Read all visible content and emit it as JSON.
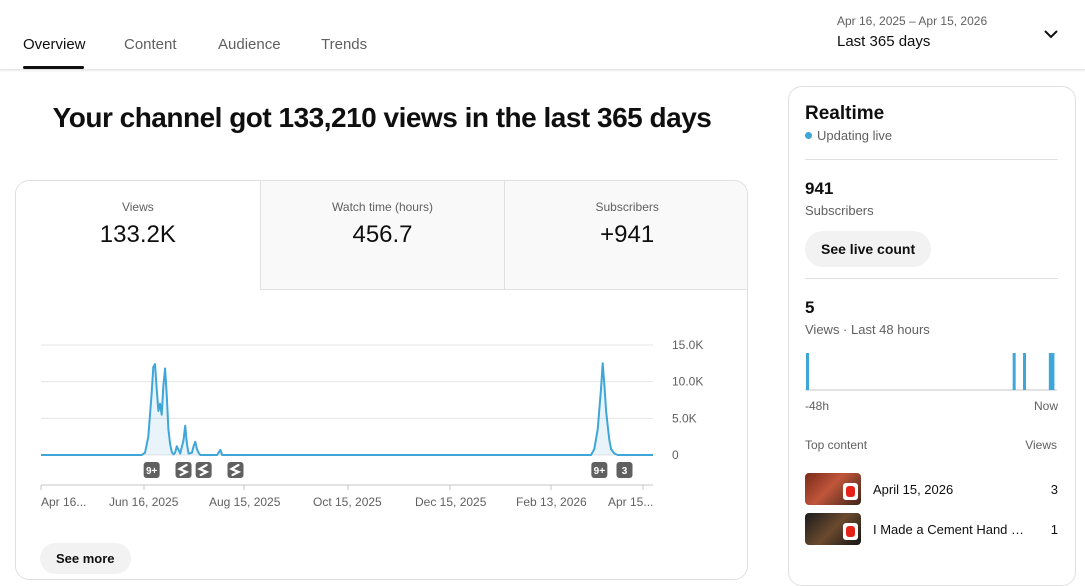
{
  "tabs": [
    {
      "label": "Overview"
    },
    {
      "label": "Content"
    },
    {
      "label": "Audience"
    },
    {
      "label": "Trends"
    }
  ],
  "date_range": {
    "dates": "Apr 16, 2025 – Apr 15, 2026",
    "label": "Last 365 days"
  },
  "headline": "Your channel got 133,210 views in the last 365 days",
  "metrics": [
    {
      "label": "Views",
      "value": "133.2K"
    },
    {
      "label": "Watch time (hours)",
      "value": "456.7"
    },
    {
      "label": "Subscribers",
      "value": "+941"
    }
  ],
  "chart_data": {
    "type": "line",
    "y_tick_labels": [
      "15.0K",
      "10.0K",
      "5.0K",
      "0"
    ],
    "ylim": [
      0,
      15000
    ],
    "x_tick_labels": [
      "Apr 16...",
      "Jun 16, 2025",
      "Aug 15, 2025",
      "Oct 15, 2025",
      "Dec 15, 2025",
      "Feb 13, 2026",
      "Apr 15..."
    ],
    "x_range_days": [
      0,
      365
    ],
    "series": [
      {
        "color": "#3ea6d9",
        "points": [
          [
            0,
            0
          ],
          [
            60,
            0
          ],
          [
            62,
            300
          ],
          [
            64,
            2500
          ],
          [
            66,
            8500
          ],
          [
            67,
            12000
          ],
          [
            68,
            12400
          ],
          [
            69,
            9000
          ],
          [
            70,
            6000
          ],
          [
            71,
            7000
          ],
          [
            72,
            5500
          ],
          [
            73,
            9500
          ],
          [
            74,
            11800
          ],
          [
            75,
            8000
          ],
          [
            76,
            3500
          ],
          [
            77,
            1500
          ],
          [
            78,
            400
          ],
          [
            79,
            100
          ],
          [
            80,
            300
          ],
          [
            81,
            1200
          ],
          [
            82,
            700
          ],
          [
            83,
            200
          ],
          [
            85,
            2000
          ],
          [
            86,
            4000
          ],
          [
            87,
            1500
          ],
          [
            88,
            200
          ],
          [
            90,
            300
          ],
          [
            91,
            1200
          ],
          [
            92,
            1800
          ],
          [
            93,
            800
          ],
          [
            94,
            300
          ],
          [
            95,
            0
          ],
          [
            105,
            0
          ],
          [
            107,
            700
          ],
          [
            108,
            0
          ],
          [
            200,
            0
          ],
          [
            320,
            0
          ],
          [
            328,
            0
          ],
          [
            330,
            800
          ],
          [
            332,
            3500
          ],
          [
            334,
            9000
          ],
          [
            335,
            12500
          ],
          [
            336,
            9500
          ],
          [
            337,
            6000
          ],
          [
            338,
            4000
          ],
          [
            339,
            2000
          ],
          [
            340,
            800
          ],
          [
            342,
            200
          ],
          [
            344,
            0
          ],
          [
            365,
            0
          ]
        ]
      }
    ],
    "markers": [
      {
        "day": 66,
        "label": "9+",
        "kind": "count"
      },
      {
        "day": 85,
        "label": "",
        "kind": "shorts"
      },
      {
        "day": 97,
        "label": "",
        "kind": "shorts"
      },
      {
        "day": 116,
        "label": "",
        "kind": "shorts"
      },
      {
        "day": 333,
        "label": "9+",
        "kind": "count"
      },
      {
        "day": 348,
        "label": "3",
        "kind": "count"
      }
    ]
  },
  "see_more": "See more",
  "realtime": {
    "title": "Realtime",
    "live": "Updating live",
    "subscribers_count": "941",
    "subscribers_label": "Subscribers",
    "live_button": "See live count",
    "views_count": "5",
    "views_label": "Views · Last 48 hours",
    "mini_bars_hours_ago": [
      48,
      8,
      6,
      1,
      0.5
    ],
    "tick_left": "-48h",
    "tick_right": "Now",
    "top_content_label": "Top content",
    "top_content_metric": "Views",
    "top_content": [
      {
        "title": "April 15, 2026",
        "views": "3"
      },
      {
        "title": "I Made a Cement Hand Sculpture",
        "views": "1"
      }
    ]
  }
}
